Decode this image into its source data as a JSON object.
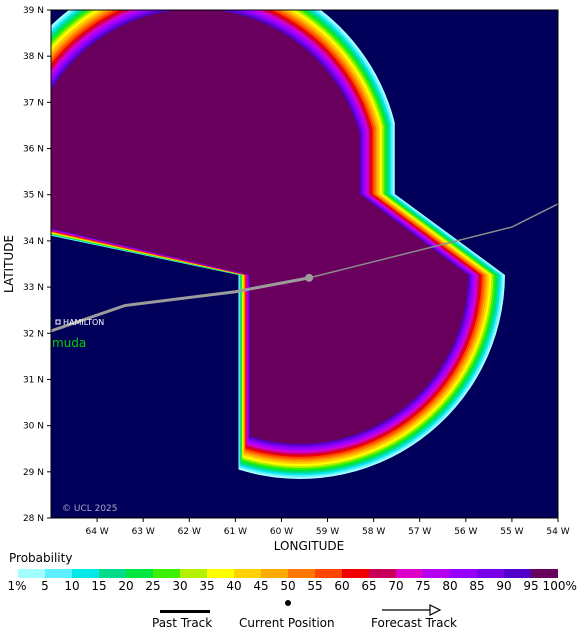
{
  "map": {
    "lat_ticks": [
      "39 N",
      "38 N",
      "37 N",
      "36 N",
      "35 N",
      "34 N",
      "33 N",
      "32 N",
      "31 N",
      "30 N",
      "29 N",
      "28 N"
    ],
    "lon_ticks": [
      "64 W",
      "63 W",
      "62 W",
      "61 W",
      "60 W",
      "59 W",
      "58 W",
      "57 W",
      "56 W",
      "55 W",
      "54 W"
    ],
    "lat_range": [
      28,
      39
    ],
    "lon_range": [
      -65,
      -54
    ],
    "y_label": "LATITUDE",
    "x_label": "LONGITUDE",
    "ocean_color": "#00005a",
    "places": {
      "city": "HAMILTON",
      "island": "muda"
    },
    "copyright": "© UCL 2025"
  },
  "track": {
    "past": [
      [
        -65.0,
        32.05
      ],
      [
        -63.4,
        32.6
      ],
      [
        -61.0,
        32.9
      ],
      [
        -59.4,
        33.2
      ]
    ],
    "current": [
      -59.4,
      33.2
    ],
    "forecast": [
      [
        -59.4,
        33.2
      ],
      [
        -55.0,
        34.3
      ],
      [
        -54.0,
        34.8
      ]
    ]
  },
  "legend": {
    "title": "Probability",
    "labels": [
      "1%",
      "5",
      "10",
      "15",
      "20",
      "25",
      "30",
      "35",
      "40",
      "45",
      "50",
      "55",
      "60",
      "65",
      "70",
      "75",
      "80",
      "85",
      "90",
      "95",
      "100%"
    ],
    "colors": [
      "#a0ffff",
      "#5ff0ff",
      "#00e8e8",
      "#00dc8c",
      "#00e640",
      "#3cf000",
      "#b4f000",
      "#ffff00",
      "#ffd200",
      "#ffaa00",
      "#ff7800",
      "#ff4600",
      "#f00000",
      "#c8005a",
      "#dc00c8",
      "#b400f0",
      "#9600ff",
      "#7800e6",
      "#5000c8",
      "#6a005e"
    ]
  },
  "key": {
    "past_track": "Past Track",
    "current_position": "Current Position",
    "forecast_track": "Forecast Track"
  }
}
